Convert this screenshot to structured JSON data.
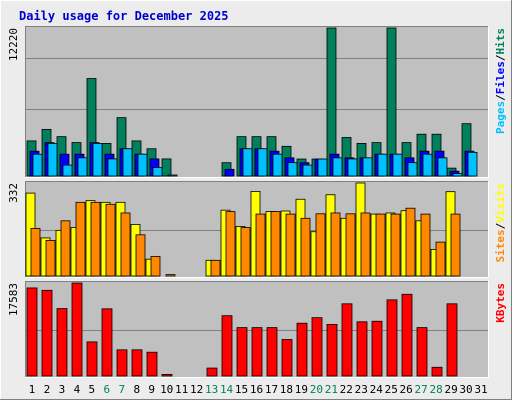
{
  "chart_data": {
    "type": "bar",
    "title": "Daily usage for December 2025",
    "colors": {
      "background": "#ececec",
      "plot": "#c0c0c0",
      "title": "#0000cc",
      "hits": "#00805c",
      "files": "#0000ff",
      "pages": "#00c0ff",
      "visits": "#ffff00",
      "sites": "#ff8800",
      "kbytes": "#ff0000",
      "weekend_label": "#00805c",
      "weekday_label": "#000000"
    },
    "categories": [
      "1",
      "2",
      "3",
      "4",
      "5",
      "6",
      "7",
      "8",
      "9",
      "10",
      "11",
      "12",
      "13",
      "14",
      "15",
      "16",
      "17",
      "18",
      "19",
      "20",
      "21",
      "22",
      "23",
      "24",
      "25",
      "26",
      "27",
      "28",
      "29",
      "30",
      "31"
    ],
    "weekend_days": [
      "6",
      "7",
      "13",
      "14",
      "20",
      "21",
      "27",
      "28"
    ],
    "panels": [
      {
        "id": "hits_files_pages",
        "ymax_label": "12220",
        "ymax": 12220,
        "legend": [
          {
            "text": "Pages",
            "color": "#00c0ff"
          },
          {
            "text": "/",
            "color": "#000000"
          },
          {
            "text": "Files",
            "color": "#0000ff"
          },
          {
            "text": "/",
            "color": "#000000"
          },
          {
            "text": "Hits",
            "color": "#00805c"
          }
        ],
        "series": [
          {
            "name": "Hits",
            "color": "#00805c",
            "values": [
              2900,
              3850,
              3250,
              2760,
              8050,
              2690,
              4820,
              2900,
              2250,
              1410,
              0,
              0,
              0,
              1100,
              3250,
              3250,
              3250,
              2450,
              1400,
              1400,
              12220,
              3180,
              2690,
              2760,
              12220,
              2760,
              3450,
              3450,
              650,
              4320,
              0
            ]
          },
          {
            "name": "Files",
            "color": "#0000ff",
            "values": [
              2050,
              2760,
              1800,
              1800,
              2760,
              1800,
              2250,
              1800,
              1410,
              0,
              0,
              0,
              0,
              550,
              2250,
              2250,
              2050,
              1500,
              1100,
              1400,
              1800,
              1500,
              1500,
              1800,
              1800,
              1500,
              2050,
              2050,
              400,
              2050,
              0
            ]
          },
          {
            "name": "Pages",
            "color": "#00c0ff",
            "values": [
              1800,
              2690,
              900,
              1500,
              2690,
              1410,
              2250,
              1800,
              700,
              80,
              0,
              0,
              0,
              0,
              2250,
              2250,
              1800,
              1100,
              900,
              1400,
              1500,
              1410,
              1500,
              1800,
              1800,
              1100,
              1800,
              1500,
              200,
              1950,
              0
            ]
          }
        ]
      },
      {
        "id": "visits_sites",
        "ymax_label": "332",
        "ymax": 332,
        "legend": [
          {
            "text": "Sites",
            "color": "#ff8800"
          },
          {
            "text": "/",
            "color": "#000000"
          },
          {
            "text": "Visits",
            "color": "#ffff00"
          }
        ],
        "series": [
          {
            "name": "Visits",
            "color": "#ffff00",
            "values": [
              296,
              136,
              163,
              173,
              269,
              263,
              263,
              184,
              60,
              0,
              0,
              0,
              56,
              235,
              177,
              302,
              230,
              232,
              274,
              158,
              290,
              206,
              332,
              221,
              225,
              233,
              197,
              95,
              301,
              0,
              0
            ]
          },
          {
            "name": "Sites",
            "color": "#ff8800",
            "values": [
              170,
              127,
              197,
              263,
              263,
              256,
              225,
              147,
              70,
              5,
              0,
              0,
              56,
              230,
              173,
              221,
              230,
              221,
              206,
              222,
              225,
              222,
              225,
              221,
              221,
              242,
              221,
              121,
              221,
              0,
              0
            ]
          }
        ]
      },
      {
        "id": "kbytes",
        "ymax_label": "17583",
        "ymax": 17583,
        "legend": [
          {
            "text": "KBytes",
            "color": "#ff0000"
          }
        ],
        "series": [
          {
            "name": "KBytes",
            "color": "#ff0000",
            "values": [
              16650,
              16200,
              12750,
              17580,
              6450,
              12700,
              4950,
              4950,
              4500,
              300,
              0,
              0,
              1500,
              11400,
              9150,
              9150,
              9150,
              6900,
              9980,
              11030,
              9750,
              13650,
              10250,
              10350,
              14400,
              15450,
              9150,
              1650,
              13650,
              0,
              0
            ]
          }
        ]
      }
    ],
    "grid": true
  }
}
